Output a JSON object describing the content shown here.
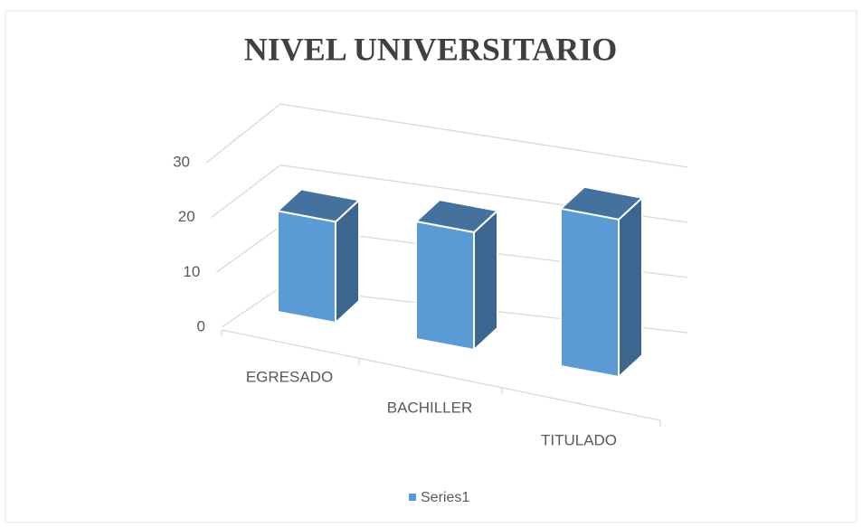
{
  "chart_data": {
    "type": "bar3d",
    "title": "NIVEL UNIVERSITARIO",
    "categories": [
      "EGRESADO",
      "BACHILLER",
      "TITULADO"
    ],
    "series": [
      {
        "name": "Series1",
        "color": "#5b9bd5",
        "values": [
          18,
          20,
          26
        ]
      }
    ],
    "ylim": [
      0,
      30
    ],
    "yticks": [
      0,
      10,
      20,
      30
    ],
    "grid": true,
    "legend": "bottom"
  }
}
